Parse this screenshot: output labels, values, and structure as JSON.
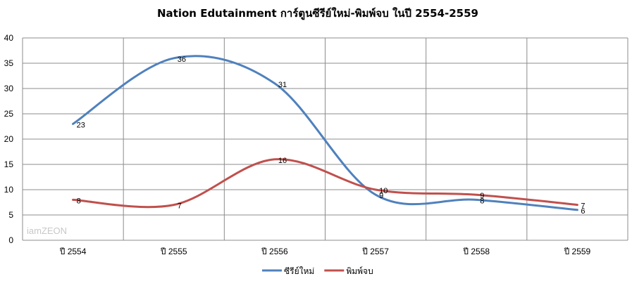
{
  "chart_data": {
    "type": "line",
    "title": "Nation Edutainment การ์ตูนซีรีย์ใหม่-พิมพ์จบ ในปี 2554-2559",
    "xlabel": "",
    "ylabel": "",
    "categories": [
      "ปี 2554",
      "ปี 2555",
      "ปี 2556",
      "ปี 2557",
      "ปี 2558",
      "ปี 2559"
    ],
    "ylim": [
      0,
      40
    ],
    "yticks": [
      0,
      5,
      10,
      15,
      20,
      25,
      30,
      35,
      40
    ],
    "grid": true,
    "smooth": true,
    "legend_position": "bottom",
    "series": [
      {
        "name": "ซีรีย์ใหม่",
        "color": "#4f81bd",
        "values": [
          23,
          36,
          31,
          9,
          8,
          6
        ]
      },
      {
        "name": "พิมพ์จบ",
        "color": "#c0504d",
        "values": [
          8,
          7,
          16,
          10,
          9,
          7
        ]
      }
    ]
  },
  "watermark": "iamZEON"
}
